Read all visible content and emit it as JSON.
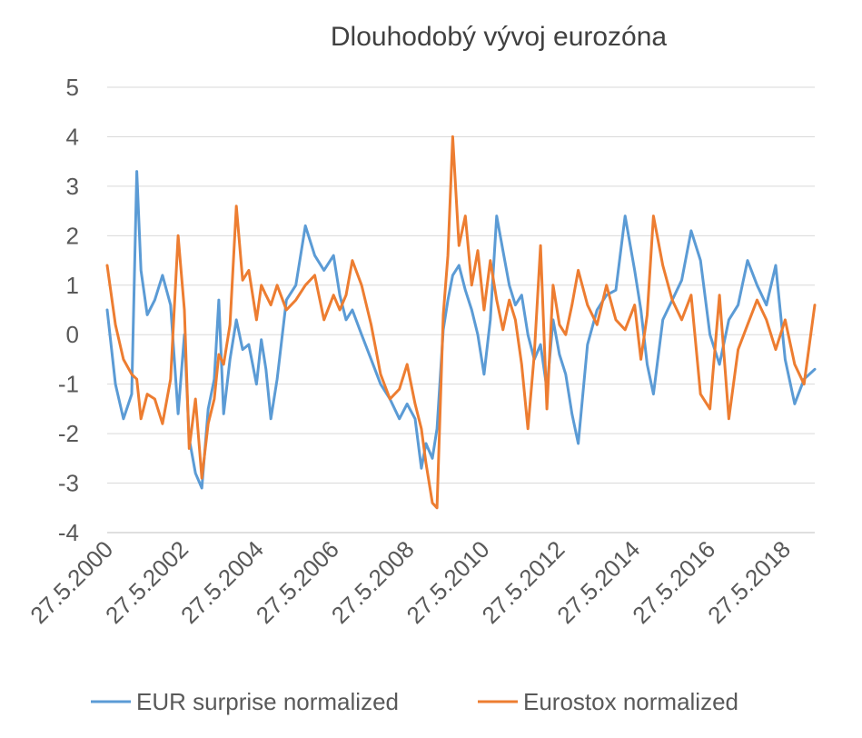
{
  "chart_data": {
    "type": "line",
    "title": "Dlouhodobý vývoj eurozóna",
    "xlabel": "",
    "ylabel": "",
    "x_range": [
      "27.5.2000",
      "15.3.2019"
    ],
    "ylim": [
      -4,
      5
    ],
    "yticks": [
      "5",
      "4",
      "3",
      "2",
      "1",
      "0",
      "-1",
      "-2",
      "-3",
      "-4"
    ],
    "xticks": [
      "27.5.2000",
      "27.5.2002",
      "27.5.2004",
      "27.5.2006",
      "27.5.2008",
      "27.5.2010",
      "27.5.2012",
      "27.5.2014",
      "27.5.2016",
      "27.5.2018"
    ],
    "grid": "horizontal",
    "legend_position": "bottom",
    "series": [
      {
        "name": "EUR surprise normalized",
        "color": "#5b9bd5",
        "x": [
          "27.5.2000",
          "15.8.2000",
          "1.11.2000",
          "20.1.2001",
          "10.3.2001",
          "20.4.2001",
          "20.6.2001",
          "1.9.2001",
          "15.11.2001",
          "1.2.2002",
          "15.4.2002",
          "15.6.2002",
          "1.8.2002",
          "1.10.2002",
          "1.12.2002",
          "1.2.2003",
          "1.4.2003",
          "15.5.2003",
          "1.7.2003",
          "1.9.2003",
          "1.11.2003",
          "1.1.2004",
          "1.3.2004",
          "15.5.2004",
          "1.7.2004",
          "15.8.2004",
          "1.10.2004",
          "1.12.2004",
          "1.3.2005",
          "1.6.2005",
          "1.9.2005",
          "1.12.2005",
          "1.3.2006",
          "1.6.2006",
          "1.8.2006",
          "1.10.2006",
          "1.12.2006",
          "1.3.2007",
          "1.6.2007",
          "1.9.2007",
          "1.12.2007",
          "1.3.2008",
          "15.5.2008",
          "1.8.2008",
          "1.10.2008",
          "15.11.2008",
          "15.1.2009",
          "1.3.2009",
          "1.5.2009",
          "15.6.2009",
          "1.8.2009",
          "1.10.2009",
          "1.12.2009",
          "1.2.2010",
          "1.4.2010",
          "1.6.2010",
          "1.8.2010",
          "1.10.2010",
          "1.12.2010",
          "1.2.2011",
          "1.4.2011",
          "1.6.2011",
          "1.8.2011",
          "1.10.2011",
          "1.12.2011",
          "1.2.2012",
          "1.4.2012",
          "1.6.2012",
          "1.8.2012",
          "1.10.2012",
          "1.12.2012",
          "1.3.2013",
          "1.6.2013",
          "1.9.2013",
          "1.12.2013",
          "1.3.2014",
          "1.6.2014",
          "1.8.2014",
          "1.10.2014",
          "1.12.2014",
          "1.3.2015",
          "1.6.2015",
          "1.9.2015",
          "1.12.2015",
          "1.3.2016",
          "1.6.2016",
          "1.9.2016",
          "1.12.2016",
          "1.3.2017",
          "1.6.2017",
          "1.9.2017",
          "1.12.2017",
          "1.3.2018",
          "1.6.2018",
          "1.9.2018",
          "1.12.2018",
          "15.3.2019"
        ],
        "values": [
          0.5,
          -1.0,
          -1.7,
          -1.2,
          3.3,
          1.3,
          0.4,
          0.7,
          1.2,
          0.6,
          -1.6,
          0.0,
          -2.1,
          -2.8,
          -3.1,
          -1.5,
          -0.9,
          0.7,
          -1.6,
          -0.5,
          0.3,
          -0.3,
          -0.2,
          -1.0,
          -0.1,
          -0.7,
          -1.7,
          -0.9,
          0.7,
          1.0,
          2.2,
          1.6,
          1.3,
          1.6,
          0.8,
          0.3,
          0.5,
          0.0,
          -0.5,
          -1.0,
          -1.3,
          -1.7,
          -1.4,
          -1.7,
          -2.7,
          -2.2,
          -2.5,
          -1.9,
          0.1,
          0.7,
          1.2,
          1.4,
          0.9,
          0.5,
          0.0,
          -0.8,
          0.3,
          2.4,
          1.7,
          1.0,
          0.6,
          0.8,
          0.0,
          -0.5,
          -0.2,
          -1.1,
          0.3,
          -0.4,
          -0.8,
          -1.6,
          -2.2,
          -0.2,
          0.5,
          0.8,
          0.9,
          2.4,
          1.3,
          0.5,
          -0.6,
          -1.2,
          0.3,
          0.7,
          1.1,
          2.1,
          1.5,
          0.0,
          -0.6,
          0.3,
          0.6,
          1.5,
          1.0,
          0.6,
          1.4,
          -0.5,
          -1.4,
          -0.9,
          -0.7
        ]
      },
      {
        "name": "Eurostox normalized",
        "color": "#ed7d31",
        "x": [
          "27.5.2000",
          "15.8.2000",
          "1.11.2000",
          "20.1.2001",
          "10.3.2001",
          "20.4.2001",
          "20.6.2001",
          "1.9.2001",
          "15.11.2001",
          "1.2.2002",
          "15.4.2002",
          "15.6.2002",
          "1.8.2002",
          "1.10.2002",
          "1.12.2002",
          "1.2.2003",
          "1.4.2003",
          "15.5.2003",
          "1.7.2003",
          "1.9.2003",
          "1.11.2003",
          "1.1.2004",
          "1.3.2004",
          "15.5.2004",
          "1.7.2004",
          "15.8.2004",
          "1.10.2004",
          "1.12.2004",
          "1.3.2005",
          "1.6.2005",
          "1.9.2005",
          "1.12.2005",
          "1.3.2006",
          "1.6.2006",
          "1.8.2006",
          "1.10.2006",
          "1.12.2006",
          "1.3.2007",
          "1.6.2007",
          "1.9.2007",
          "1.12.2007",
          "1.3.2008",
          "15.5.2008",
          "1.8.2008",
          "1.10.2008",
          "15.11.2008",
          "15.1.2009",
          "1.3.2009",
          "1.5.2009",
          "15.6.2009",
          "1.8.2009",
          "1.10.2009",
          "1.12.2009",
          "1.2.2010",
          "1.4.2010",
          "1.6.2010",
          "1.8.2010",
          "1.10.2010",
          "1.12.2010",
          "1.2.2011",
          "1.4.2011",
          "1.6.2011",
          "1.8.2011",
          "1.10.2011",
          "1.12.2011",
          "1.2.2012",
          "1.4.2012",
          "1.6.2012",
          "1.8.2012",
          "1.10.2012",
          "1.12.2012",
          "1.3.2013",
          "1.6.2013",
          "1.9.2013",
          "1.12.2013",
          "1.3.2014",
          "1.6.2014",
          "1.8.2014",
          "1.10.2014",
          "1.12.2014",
          "1.3.2015",
          "1.6.2015",
          "1.9.2015",
          "1.12.2015",
          "1.3.2016",
          "1.6.2016",
          "1.9.2016",
          "1.12.2016",
          "1.3.2017",
          "1.6.2017",
          "1.9.2017",
          "1.12.2017",
          "1.3.2018",
          "1.6.2018",
          "1.9.2018",
          "1.12.2018",
          "15.3.2019"
        ],
        "values": [
          1.4,
          0.2,
          -0.5,
          -0.8,
          -0.9,
          -1.7,
          -1.2,
          -1.3,
          -1.8,
          -0.9,
          2.0,
          0.5,
          -2.3,
          -1.3,
          -2.9,
          -1.8,
          -1.3,
          -0.4,
          -0.6,
          0.2,
          2.6,
          1.1,
          1.3,
          0.3,
          1.0,
          0.8,
          0.6,
          1.0,
          0.5,
          0.7,
          1.0,
          1.2,
          0.3,
          0.8,
          0.5,
          0.8,
          1.5,
          1.0,
          0.2,
          -0.8,
          -1.3,
          -1.1,
          -0.6,
          -1.4,
          -1.9,
          -2.6,
          -3.4,
          -3.5,
          0.4,
          1.6,
          4.0,
          1.8,
          2.4,
          1.0,
          1.7,
          0.5,
          1.5,
          0.7,
          0.1,
          0.7,
          0.3,
          -0.6,
          -1.9,
          -0.4,
          1.8,
          -1.5,
          1.0,
          0.2,
          0.0,
          0.6,
          1.3,
          0.6,
          0.2,
          1.0,
          0.3,
          0.1,
          0.6,
          -0.5,
          0.4,
          2.4,
          1.4,
          0.7,
          0.3,
          0.8,
          -1.2,
          -1.5,
          0.8,
          -1.7,
          -0.3,
          0.2,
          0.7,
          0.3,
          -0.3,
          0.3,
          -0.6,
          -1.0,
          0.6
        ]
      }
    ]
  }
}
